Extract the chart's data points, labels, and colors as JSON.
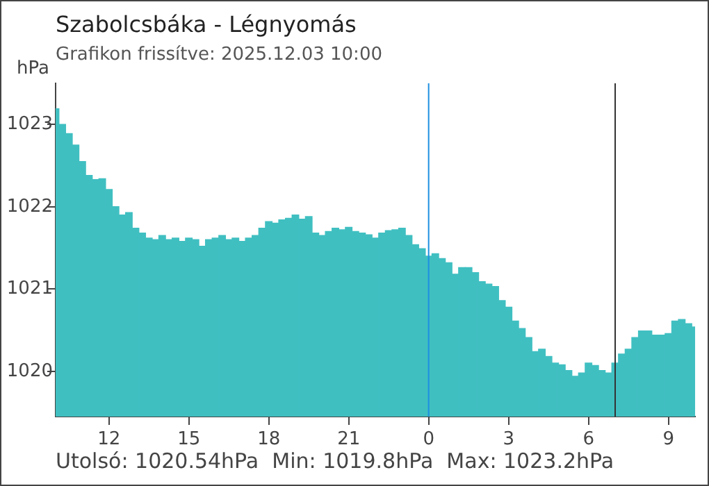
{
  "chart_data": {
    "type": "bar",
    "title": "Szabolcsbáka - Légnyomás",
    "subtitle": "Grafikon frissítve: 2025.12.03 10:00",
    "ylabel": "hPa",
    "annotations": [
      "Utolsó: 1020.54hPa  Min: 1019.8hPa  Max: 1023.2hPa"
    ],
    "x": [
      "2025-12-02T10:00",
      "2025-12-02T10:15",
      "2025-12-02T10:30",
      "2025-12-02T10:45",
      "2025-12-02T11:00",
      "2025-12-02T11:15",
      "2025-12-02T11:30",
      "2025-12-02T11:45",
      "2025-12-02T12:00",
      "2025-12-02T12:15",
      "2025-12-02T12:30",
      "2025-12-02T12:45",
      "2025-12-02T13:00",
      "2025-12-02T13:15",
      "2025-12-02T13:30",
      "2025-12-02T13:45",
      "2025-12-02T14:00",
      "2025-12-02T14:15",
      "2025-12-02T14:30",
      "2025-12-02T14:45",
      "2025-12-02T15:00",
      "2025-12-02T15:15",
      "2025-12-02T15:30",
      "2025-12-02T15:45",
      "2025-12-02T16:00",
      "2025-12-02T16:15",
      "2025-12-02T16:30",
      "2025-12-02T16:45",
      "2025-12-02T17:00",
      "2025-12-02T17:15",
      "2025-12-02T17:30",
      "2025-12-02T17:45",
      "2025-12-02T18:00",
      "2025-12-02T18:15",
      "2025-12-02T18:30",
      "2025-12-02T18:45",
      "2025-12-02T19:00",
      "2025-12-02T19:15",
      "2025-12-02T19:30",
      "2025-12-02T19:45",
      "2025-12-02T20:00",
      "2025-12-02T20:15",
      "2025-12-02T20:30",
      "2025-12-02T20:45",
      "2025-12-02T21:00",
      "2025-12-02T21:15",
      "2025-12-02T21:30",
      "2025-12-02T21:45",
      "2025-12-02T22:00",
      "2025-12-02T22:15",
      "2025-12-02T22:30",
      "2025-12-02T22:45",
      "2025-12-02T23:00",
      "2025-12-02T23:15",
      "2025-12-02T23:30",
      "2025-12-02T23:45",
      "2025-12-03T00:00",
      "2025-12-03T00:15",
      "2025-12-03T00:30",
      "2025-12-03T00:45",
      "2025-12-03T01:00",
      "2025-12-03T01:15",
      "2025-12-03T01:30",
      "2025-12-03T01:45",
      "2025-12-03T02:00",
      "2025-12-03T02:15",
      "2025-12-03T02:30",
      "2025-12-03T02:45",
      "2025-12-03T03:00",
      "2025-12-03T03:15",
      "2025-12-03T03:30",
      "2025-12-03T03:45",
      "2025-12-03T04:00",
      "2025-12-03T04:15",
      "2025-12-03T04:30",
      "2025-12-03T04:45",
      "2025-12-03T05:00",
      "2025-12-03T05:15",
      "2025-12-03T05:30",
      "2025-12-03T05:45",
      "2025-12-03T06:00",
      "2025-12-03T06:15",
      "2025-12-03T06:30",
      "2025-12-03T06:45",
      "2025-12-03T07:00",
      "2025-12-03T07:15",
      "2025-12-03T07:30",
      "2025-12-03T07:45",
      "2025-12-03T08:00",
      "2025-12-03T08:15",
      "2025-12-03T08:30",
      "2025-12-03T08:45",
      "2025-12-03T09:00",
      "2025-12-03T09:15",
      "2025-12-03T09:30",
      "2025-12-03T09:45",
      "2025-12-03T10:00"
    ],
    "values": [
      1023.19,
      1023.0,
      1022.89,
      1022.75,
      1022.55,
      1022.38,
      1022.33,
      1022.34,
      1022.21,
      1022.0,
      1021.9,
      1021.93,
      1021.74,
      1021.68,
      1021.62,
      1021.6,
      1021.65,
      1021.6,
      1021.62,
      1021.58,
      1021.62,
      1021.6,
      1021.52,
      1021.6,
      1021.62,
      1021.65,
      1021.6,
      1021.62,
      1021.58,
      1021.62,
      1021.65,
      1021.74,
      1021.82,
      1021.8,
      1021.84,
      1021.86,
      1021.9,
      1021.85,
      1021.88,
      1021.68,
      1021.65,
      1021.7,
      1021.74,
      1021.72,
      1021.75,
      1021.7,
      1021.68,
      1021.66,
      1021.62,
      1021.68,
      1021.71,
      1021.72,
      1021.74,
      1021.65,
      1021.54,
      1021.49,
      1021.4,
      1021.43,
      1021.37,
      1021.32,
      1021.18,
      1021.26,
      1021.26,
      1021.2,
      1021.09,
      1021.06,
      1021.03,
      1020.86,
      1020.78,
      1020.61,
      1020.52,
      1020.41,
      1020.24,
      1020.27,
      1020.18,
      1020.1,
      1020.08,
      1020.01,
      1019.94,
      1019.98,
      1020.1,
      1020.07,
      1020.01,
      1019.98,
      1020.1,
      1020.21,
      1020.27,
      1020.41,
      1020.49,
      1020.49,
      1020.44,
      1020.44,
      1020.46,
      1020.61,
      1020.63,
      1020.58,
      1020.54
    ],
    "color": "#40bfc1",
    "xlim": [
      "2025-12-02T10:00",
      "2025-12-03T10:00"
    ],
    "xticks": [
      {
        "value": "2025-12-02T12:00",
        "label": "12"
      },
      {
        "value": "2025-12-02T15:00",
        "label": "15"
      },
      {
        "value": "2025-12-02T18:00",
        "label": "18"
      },
      {
        "value": "2025-12-02T21:00",
        "label": "21"
      },
      {
        "value": "2025-12-03T00:00",
        "label": "0"
      },
      {
        "value": "2025-12-03T03:00",
        "label": "3"
      },
      {
        "value": "2025-12-03T06:00",
        "label": "6"
      },
      {
        "value": "2025-12-03T09:00",
        "label": "9"
      }
    ],
    "ylim": [
      1019.45,
      1023.5
    ],
    "yticks": [
      1020,
      1021,
      1022,
      1023
    ],
    "ref_lines": [
      {
        "axis": "x",
        "value": "2025-12-03T00:00",
        "color": "#1e90e0"
      },
      {
        "axis": "x",
        "value": "2025-12-03T07:00",
        "color": "#333333"
      }
    ],
    "grid": false,
    "legend": false
  }
}
